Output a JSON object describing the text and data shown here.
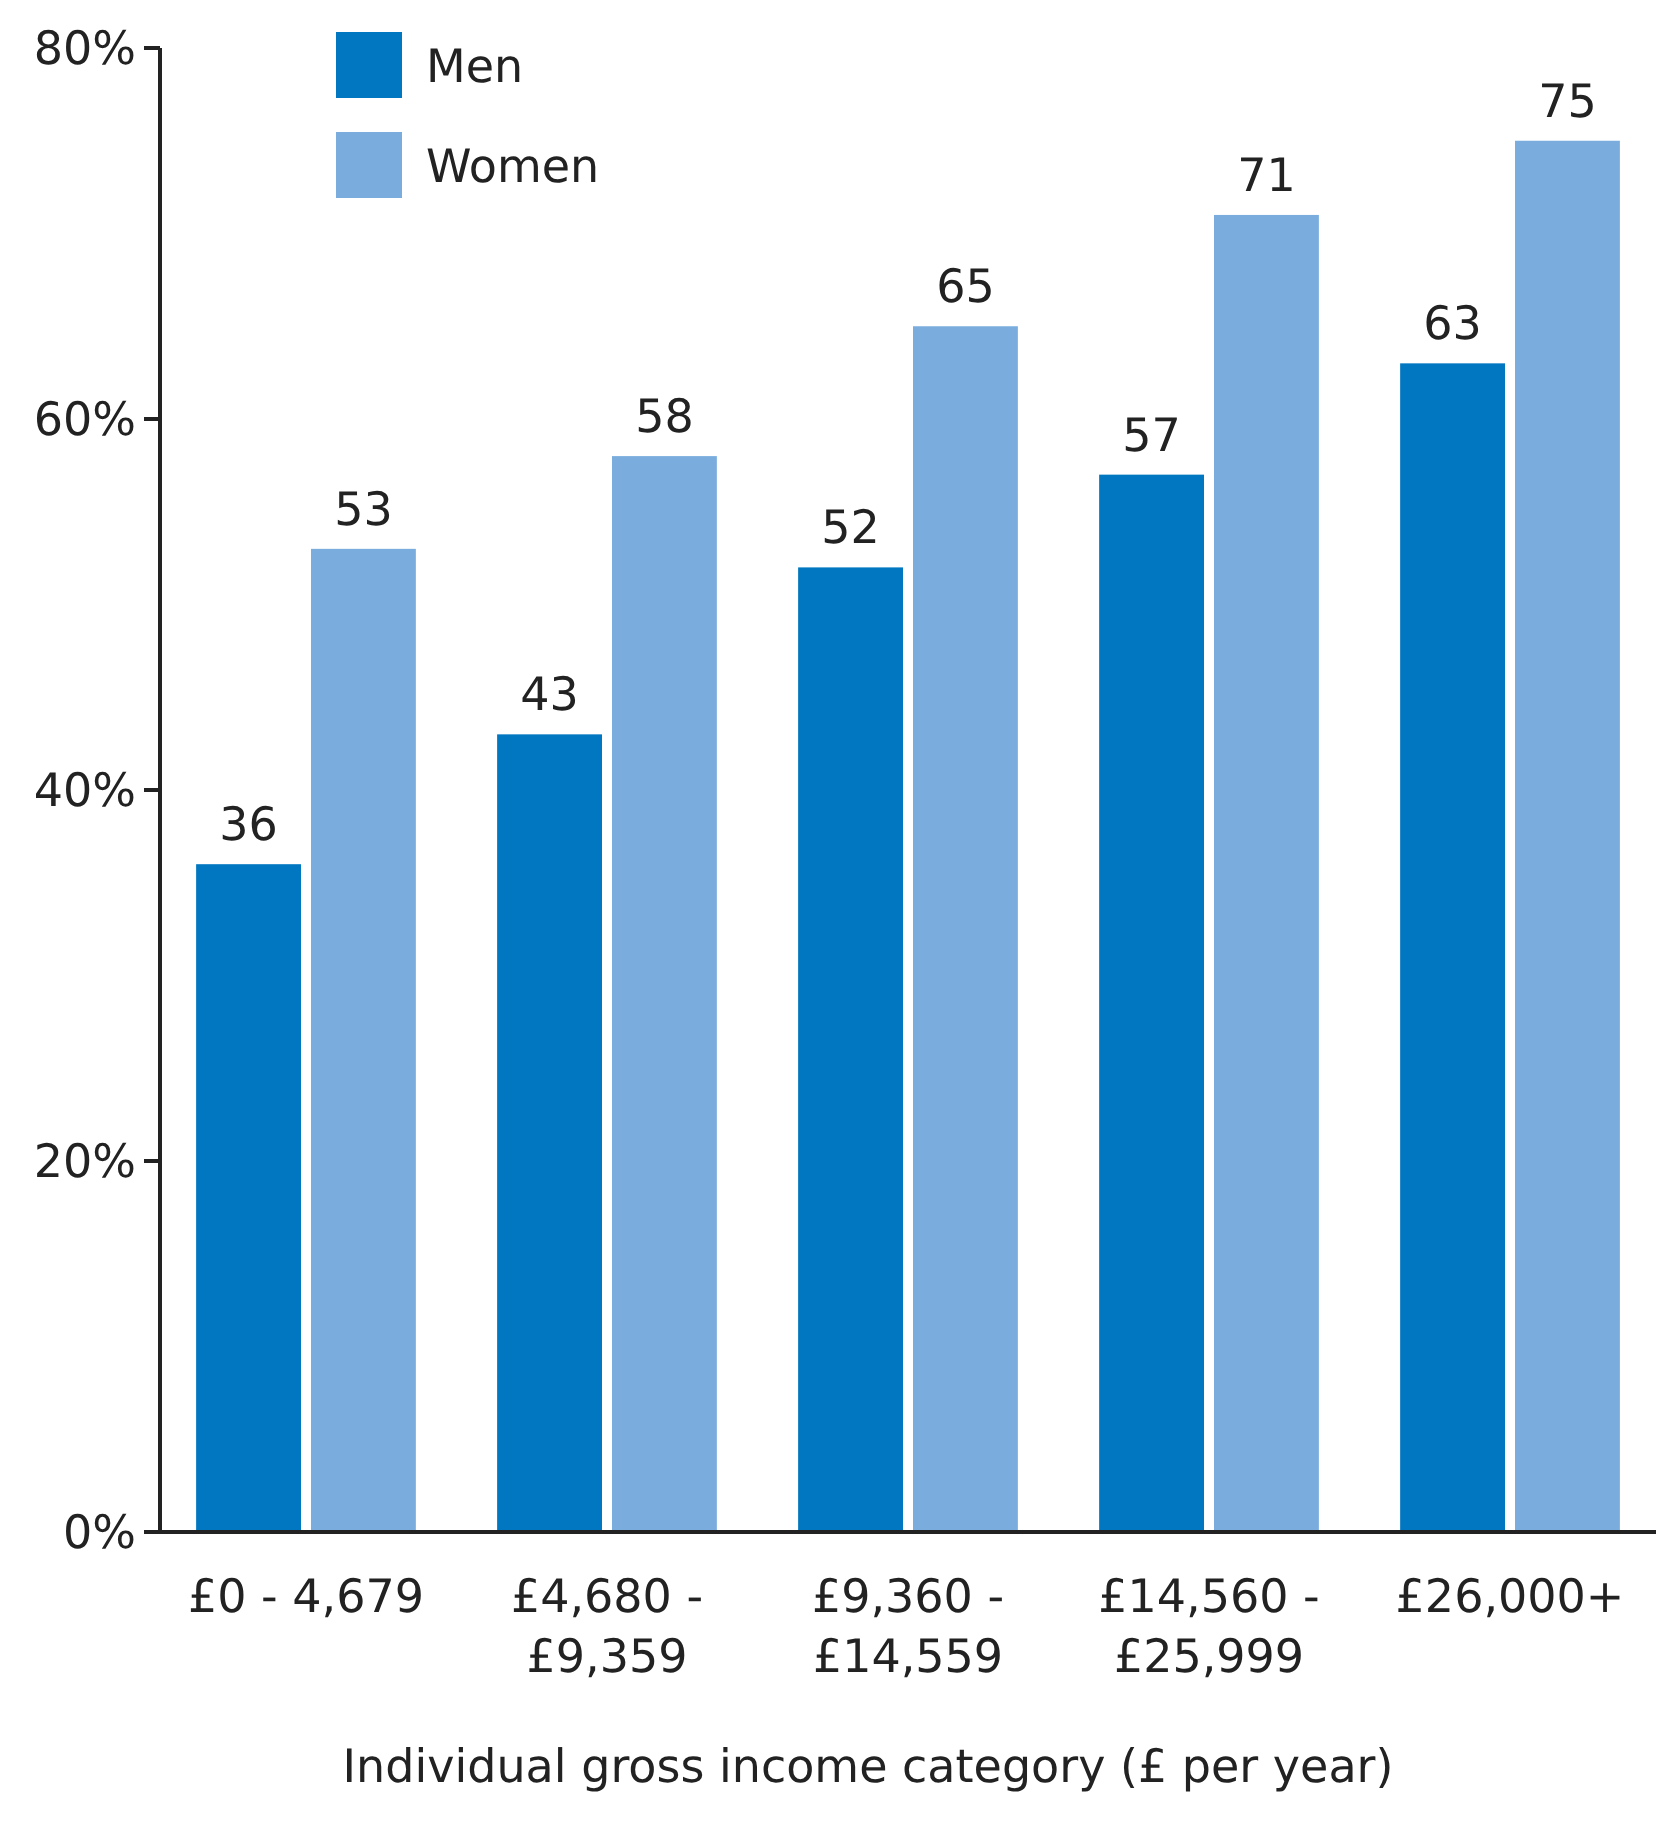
{
  "chart_data": {
    "type": "bar",
    "xlabel": "Individual gross income category (£ per year)",
    "categories": [
      "£0 - 4,679",
      "£4,680 - £9,359",
      "£9,360 - £14,559",
      "£14,560 - £25,999",
      "£26,000+"
    ],
    "series": [
      {
        "name": "Men",
        "color": "#0077c0",
        "values": [
          36,
          43,
          52,
          57,
          63
        ]
      },
      {
        "name": "Women",
        "color": "#7aadde",
        "values": [
          53,
          58,
          65,
          71,
          75
        ]
      }
    ],
    "ylim": [
      0,
      80
    ],
    "yticks": [
      {
        "value": 0,
        "label": "0%"
      },
      {
        "value": 20,
        "label": "20%"
      },
      {
        "value": 40,
        "label": "40%"
      },
      {
        "value": 60,
        "label": "60%"
      },
      {
        "value": 80,
        "label": "80%"
      }
    ],
    "data_labels": true,
    "legend": "top left"
  }
}
